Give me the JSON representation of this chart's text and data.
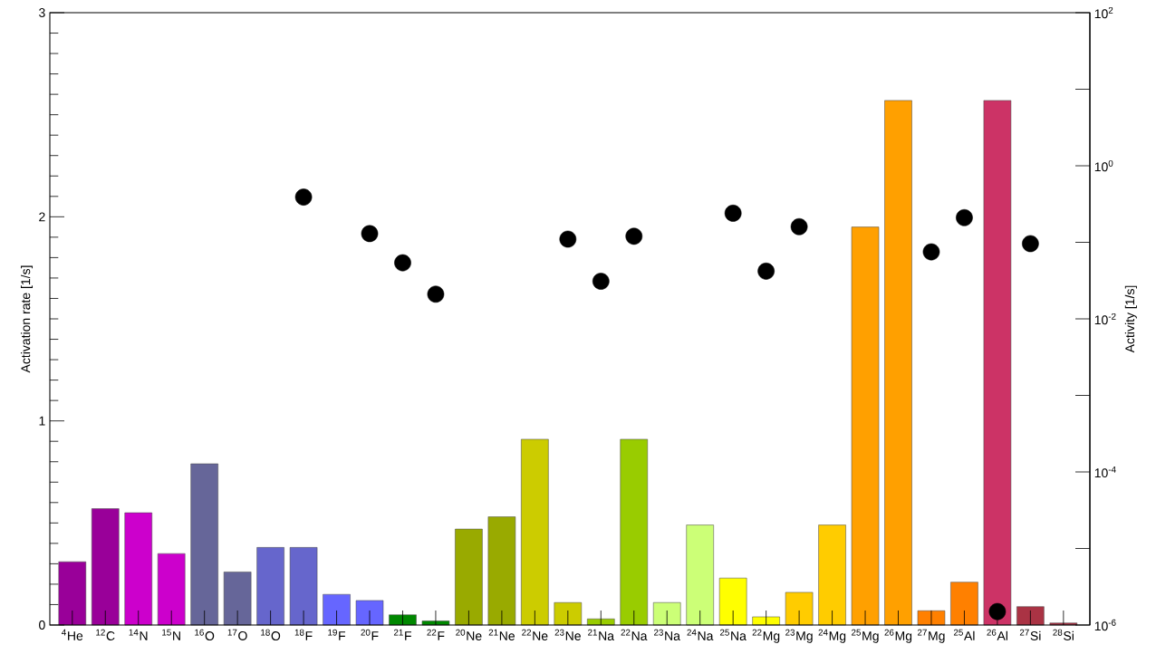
{
  "chart_data": {
    "type": "bar",
    "ylabel": "Activation rate [1/s]",
    "y2label": "Activity [1/s]",
    "categories": [
      "$^{4}$He",
      "$^{12}$C",
      "$^{14}$N",
      "$^{15}$N",
      "$^{16}$O",
      "$^{17}$O",
      "$^{18}$O",
      "$^{18}$F",
      "$^{19}$F",
      "$^{20}$F",
      "$^{21}$F",
      "$^{22}$F",
      "$^{20}$Ne",
      "$^{21}$Ne",
      "$^{22}$Ne",
      "$^{23}$Ne",
      "$^{21}$Na",
      "$^{22}$Na",
      "$^{23}$Na",
      "$^{24}$Na",
      "$^{25}$Na",
      "$^{22}$Mg",
      "$^{23}$Mg",
      "$^{24}$Mg",
      "$^{25}$Mg",
      "$^{26}$Mg",
      "$^{27}$Mg",
      "$^{25}$Al",
      "$^{26}$Al",
      "$^{27}$Si",
      "$^{28}$Si"
    ],
    "ylim": [
      0,
      3
    ],
    "yticks": [
      0,
      1,
      2,
      3
    ],
    "y2lim": [
      1e-06,
      100
    ],
    "y2ticks": [
      {
        "value": 1e-06,
        "label": "10$^{-6}$"
      },
      {
        "value": 1e-05,
        "label": null
      },
      {
        "value": 0.0001,
        "label": "10$^{-4}$"
      },
      {
        "value": 0.001,
        "label": null
      },
      {
        "value": 0.01,
        "label": "10$^{-2}$"
      },
      {
        "value": 0.1,
        "label": null
      },
      {
        "value": 1,
        "label": "10$^{0}$"
      },
      {
        "value": 10,
        "label": null
      },
      {
        "value": 100,
        "label": "10$^{2}$"
      }
    ],
    "log": "y2",
    "grid": false,
    "marker": "circle",
    "series": [
      {
        "values": [
          0.31,
          0.57,
          0.55,
          0.35,
          0.79,
          0.26,
          0.38,
          0.38,
          0.15,
          0.12,
          0.05,
          0.02,
          0.47,
          0.53,
          0.91,
          0.11,
          0.03,
          0.91,
          0.11,
          0.49,
          0.23,
          0.04,
          0.16,
          0.49,
          1.95,
          2.57,
          0.07,
          0.21,
          2.57,
          0.09,
          0.01
        ],
        "colors": [
          "#990099",
          "#990099",
          "#cc00cc",
          "#cc00cc",
          "#666699",
          "#666699",
          "#6666cc",
          "#6666cc",
          "#6666ff",
          "#6666ff",
          "#008800",
          "#008800",
          "#99aa00",
          "#99aa00",
          "#cccc00",
          "#cccc00",
          "#99cc00",
          "#99cc00",
          "#ccff77",
          "#ccff77",
          "#ffff00",
          "#ffff00",
          "#ffcc00",
          "#ffcc00",
          "#ffa000",
          "#ffa000",
          "#ff8000",
          "#ff8000",
          "#cc3366",
          "#aa3344",
          "#aa3344"
        ]
      },
      {
        "type": "scatter",
        "axis": "y2",
        "color": "#000000",
        "values": [
          null,
          null,
          null,
          null,
          null,
          null,
          null,
          0.39,
          null,
          0.13,
          0.054,
          0.021,
          null,
          null,
          null,
          0.11,
          0.031,
          0.12,
          null,
          null,
          0.24,
          0.042,
          0.16,
          null,
          null,
          null,
          0.075,
          0.21,
          1.5e-06,
          0.096,
          null
        ]
      }
    ]
  }
}
